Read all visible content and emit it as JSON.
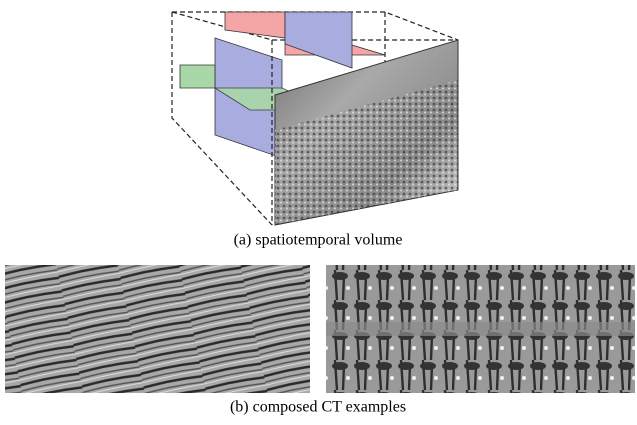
{
  "figure": {
    "panels": [
      {
        "caption": "(a) spatiotemporal volume"
      },
      {
        "caption": "(b) composed CT examples"
      }
    ]
  }
}
